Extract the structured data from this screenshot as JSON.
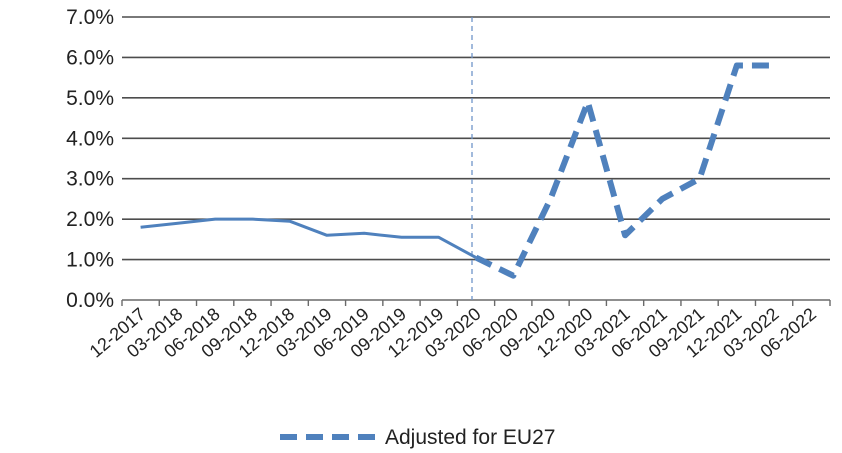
{
  "chart_data": {
    "type": "line",
    "categories": [
      "12-2017",
      "03-2018",
      "06-2018",
      "09-2018",
      "12-2018",
      "03-2019",
      "06-2019",
      "09-2019",
      "12-2019",
      "03-2020",
      "06-2020",
      "09-2020",
      "12-2020",
      "03-2021",
      "06-2021",
      "09-2021",
      "12-2021",
      "03-2022",
      "06-2022"
    ],
    "yticks": [
      "0.0%",
      "1.0%",
      "2.0%",
      "3.0%",
      "4.0%",
      "5.0%",
      "6.0%",
      "7.0%"
    ],
    "ylim": [
      0,
      7
    ],
    "grid": true,
    "reference_line_category": "03-2020",
    "legend_position": "bottom",
    "series": [
      {
        "style": "solid",
        "color": "#4F81BD",
        "values": [
          1.8,
          1.9,
          2.0,
          2.0,
          1.95,
          1.6,
          1.65,
          1.55,
          1.55,
          1.05,
          null,
          null,
          null,
          null,
          null,
          null,
          null,
          null,
          null
        ]
      },
      {
        "name": "Adjusted for EU27",
        "style": "dashed",
        "color": "#4F81BD",
        "values": [
          null,
          null,
          null,
          null,
          null,
          null,
          null,
          null,
          null,
          1.05,
          0.6,
          2.5,
          4.9,
          1.6,
          2.5,
          3.0,
          5.8,
          5.8,
          null
        ]
      }
    ]
  }
}
